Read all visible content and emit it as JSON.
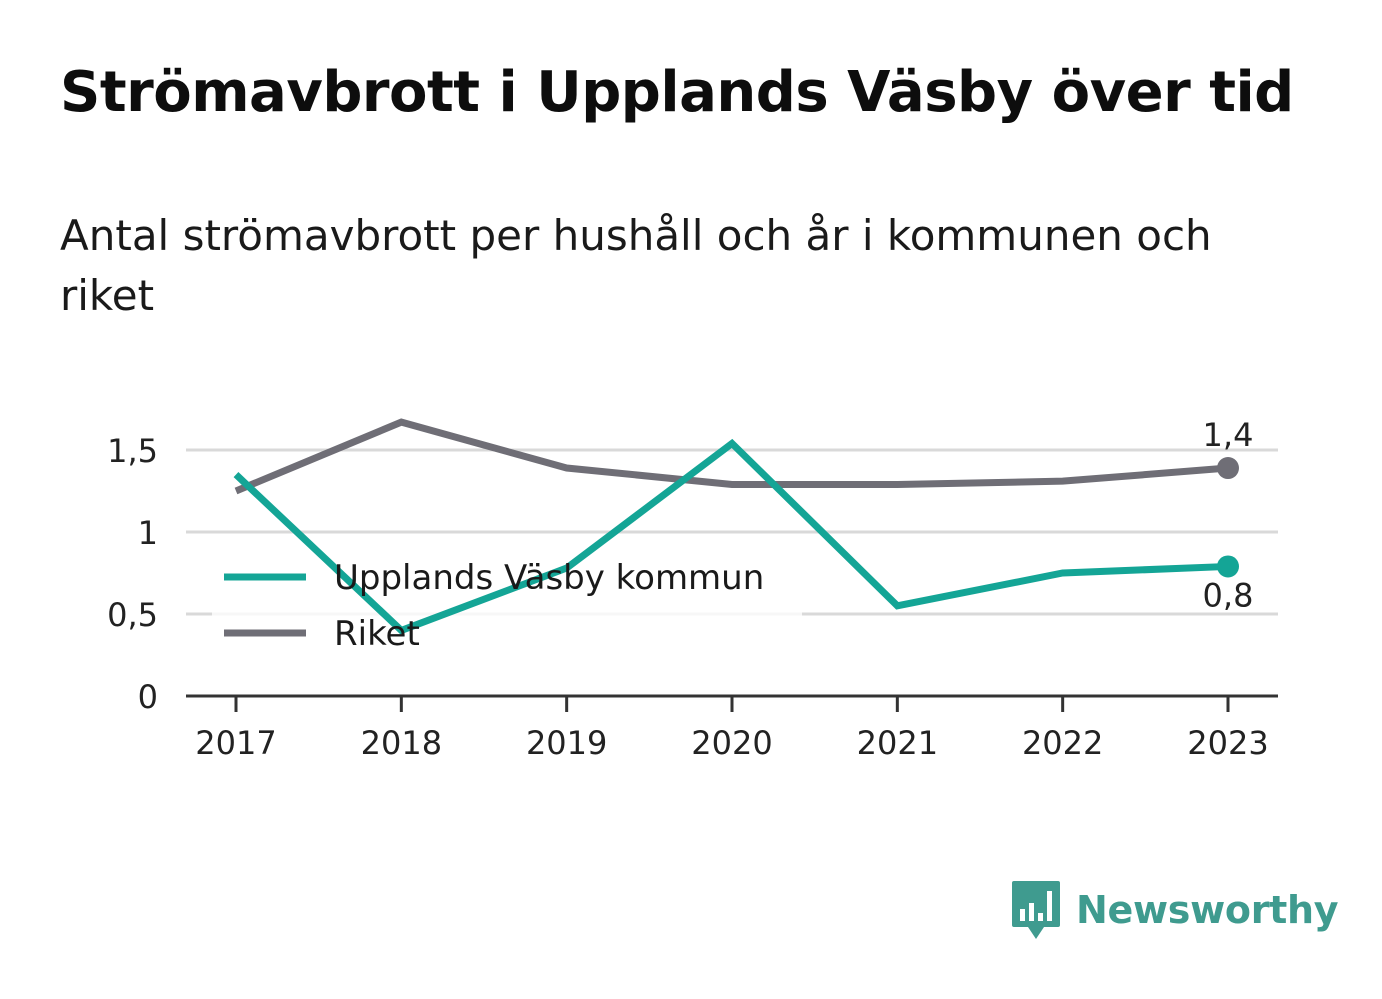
{
  "title": "Strömavbrott i Upplands Väsby över tid",
  "subtitle": "Antal strömavbrott per hushåll och år i kommunen och riket",
  "brand": {
    "name": "Newsworthy",
    "icon": "newsworthy-logo-icon"
  },
  "colors": {
    "kommun": "#14a596",
    "riket": "#6f6e76",
    "brand": "#3f9b8f",
    "grid": "#d9d9d9",
    "axis": "#333333"
  },
  "chart_data": {
    "type": "line",
    "x": [
      "2017",
      "2018",
      "2019",
      "2020",
      "2021",
      "2022",
      "2023"
    ],
    "ylim": [
      0,
      1.8
    ],
    "yticks": [
      0,
      0.5,
      1,
      1.5
    ],
    "ytick_labels": [
      "0",
      "0,5",
      "1",
      "1,5"
    ],
    "grid": true,
    "legend_position": "left-middle",
    "series": [
      {
        "name": "Upplands Väsby kommun",
        "color": "#14a596",
        "values": [
          1.35,
          0.4,
          0.78,
          1.54,
          0.55,
          0.75,
          0.79
        ],
        "end_label": "0,8"
      },
      {
        "name": "Riket",
        "color": "#6f6e76",
        "values": [
          1.25,
          1.67,
          1.39,
          1.29,
          1.29,
          1.31,
          1.39
        ],
        "end_label": "1,4"
      }
    ]
  }
}
